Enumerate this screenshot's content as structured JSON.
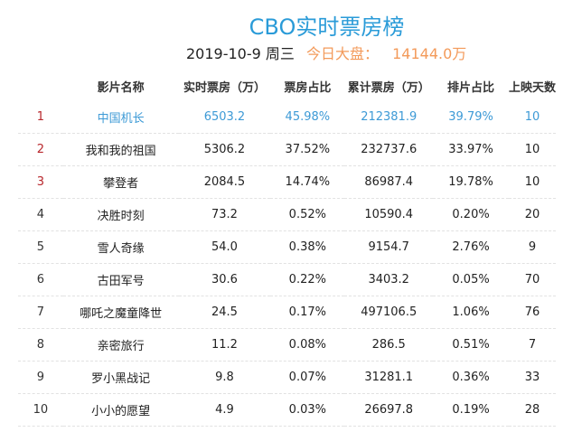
{
  "header": {
    "title": "CBO实时票房榜",
    "date": "2019-10-9 周三",
    "total_label": "今日大盘：",
    "total_value": "14144.0万"
  },
  "colors": {
    "title": "#2a9bd8",
    "total": "#f39a5a",
    "highlight_row": "#3d9ad6",
    "top_rank": "#b8272c"
  },
  "table": {
    "columns": [
      "",
      "影片名称",
      "实时票房（万）",
      "票房占比",
      "累计票房（万）",
      "排片占比",
      "上映天数"
    ],
    "rows": [
      {
        "rank": "1",
        "name": "中国机长",
        "realtime": "6503.2",
        "share": "45.98%",
        "total": "212381.9",
        "schedule": "39.79%",
        "days": "10"
      },
      {
        "rank": "2",
        "name": "我和我的祖国",
        "realtime": "5306.2",
        "share": "37.52%",
        "total": "232737.6",
        "schedule": "33.97%",
        "days": "10"
      },
      {
        "rank": "3",
        "name": "攀登者",
        "realtime": "2084.5",
        "share": "14.74%",
        "total": "86987.4",
        "schedule": "19.78%",
        "days": "10"
      },
      {
        "rank": "4",
        "name": "决胜时刻",
        "realtime": "73.2",
        "share": "0.52%",
        "total": "10590.4",
        "schedule": "0.20%",
        "days": "20"
      },
      {
        "rank": "5",
        "name": "雪人奇缘",
        "realtime": "54.0",
        "share": "0.38%",
        "total": "9154.7",
        "schedule": "2.76%",
        "days": "9"
      },
      {
        "rank": "6",
        "name": "古田军号",
        "realtime": "30.6",
        "share": "0.22%",
        "total": "3403.2",
        "schedule": "0.05%",
        "days": "70"
      },
      {
        "rank": "7",
        "name": "哪吒之魔童降世",
        "realtime": "24.5",
        "share": "0.17%",
        "total": "497106.5",
        "schedule": "1.06%",
        "days": "76"
      },
      {
        "rank": "8",
        "name": "亲密旅行",
        "realtime": "11.2",
        "share": "0.08%",
        "total": "286.5",
        "schedule": "0.51%",
        "days": "7"
      },
      {
        "rank": "9",
        "name": "罗小黑战记",
        "realtime": "9.8",
        "share": "0.07%",
        "total": "31281.1",
        "schedule": "0.36%",
        "days": "33"
      },
      {
        "rank": "10",
        "name": "小小的愿望",
        "realtime": "4.9",
        "share": "0.03%",
        "total": "26697.8",
        "schedule": "0.19%",
        "days": "28"
      }
    ]
  }
}
